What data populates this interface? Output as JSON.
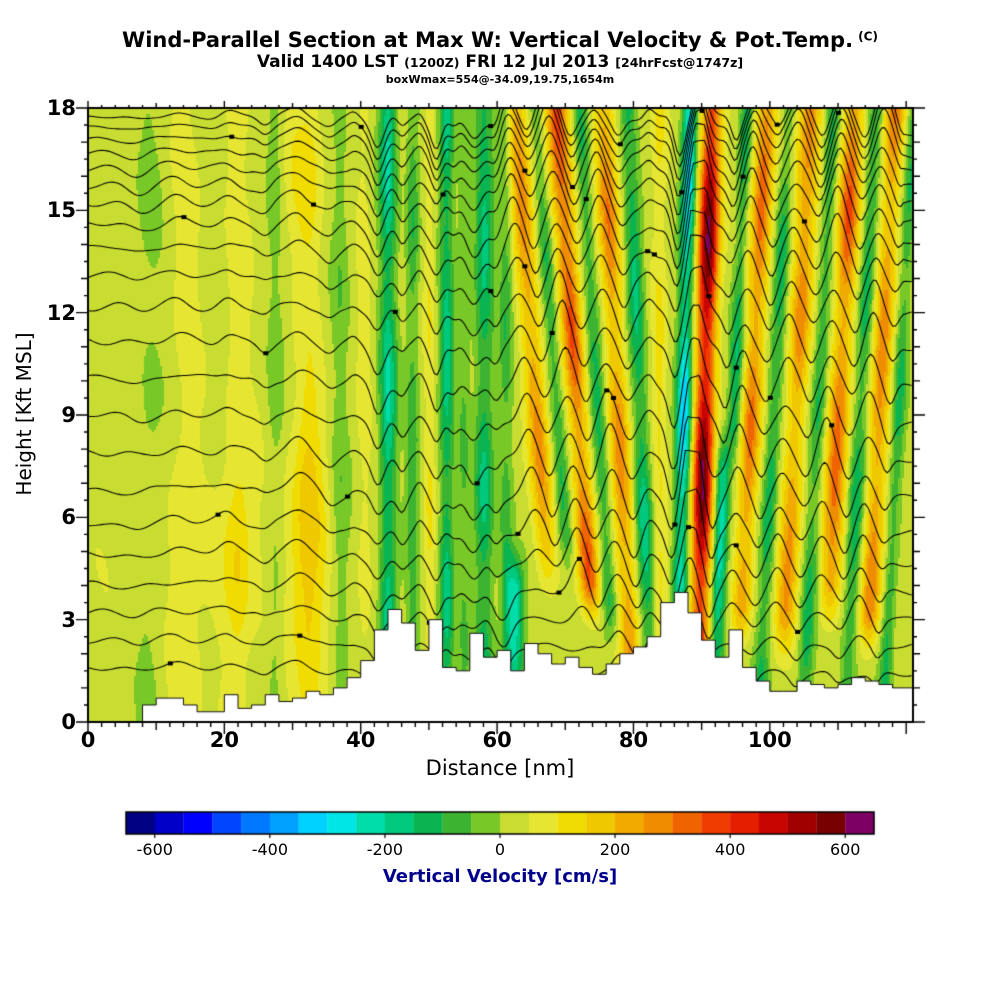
{
  "header": {
    "title": "Wind-Parallel Section at Max W: Vertical Velocity & Pot.Temp.",
    "title_suffix": "(C)",
    "subtitle_parts": [
      "Valid 1400 LST",
      "(1200Z)",
      "FRI 12 Jul 2013",
      "[24hrFcst@1747z]"
    ],
    "info_line": "boxWmax=554@-34.09,19.75,1654m"
  },
  "chart_data": {
    "type": "heatmap",
    "title": "Wind-Parallel Section at Max W: Vertical Velocity & Pot.Temp. (C)",
    "x_axis": {
      "label": "Distance [nm]",
      "range": [
        0,
        121
      ],
      "major_ticks": [
        0,
        20,
        40,
        60,
        80,
        100
      ],
      "minor_tick_step": 2
    },
    "y_axis": {
      "label": "Height [Kft MSL]",
      "range": [
        0,
        18
      ],
      "major_ticks": [
        0,
        3,
        6,
        9,
        12,
        15,
        18
      ],
      "minor_tick_step": 0.5
    },
    "colorbar": {
      "label": "Vertical Velocity [cm/s]",
      "label_color": "#00008b",
      "ticks": [
        -600,
        -400,
        -200,
        0,
        200,
        400,
        600
      ],
      "range": [
        -650,
        650
      ],
      "step": 50,
      "colors": [
        "#000082",
        "#0000c8",
        "#0000ff",
        "#0046ff",
        "#0078ff",
        "#00a0ff",
        "#00d2ff",
        "#00e6e6",
        "#00dcaa",
        "#00c87d",
        "#0ab450",
        "#3cb432",
        "#78c828",
        "#c8dc32",
        "#e6e632",
        "#f0dc00",
        "#f0c800",
        "#f0aa00",
        "#f08c00",
        "#f06400",
        "#f03c00",
        "#e61e00",
        "#c80500",
        "#a00000",
        "#780000",
        "#7d0064"
      ]
    },
    "field": {
      "base_value": 32,
      "noise_amp": 20,
      "bands": [
        [
          9,
          0,
          2.2,
          -45,
          0,
          18
        ],
        [
          14.5,
          0,
          2.0,
          45,
          0,
          18
        ],
        [
          22,
          0,
          1.6,
          55,
          0,
          18
        ],
        [
          27.5,
          0,
          1.3,
          -60,
          0,
          18
        ],
        [
          32.5,
          0,
          1.8,
          65,
          0,
          18
        ],
        [
          37,
          0,
          1.4,
          -75,
          0,
          18
        ],
        [
          40.5,
          0,
          1.0,
          40,
          0,
          18
        ],
        [
          44,
          0,
          1.3,
          -245,
          0,
          18
        ],
        [
          47.6,
          0,
          1.0,
          -135,
          0,
          18
        ],
        [
          50.1,
          0,
          0.8,
          70,
          0,
          18
        ],
        [
          52.6,
          0,
          1.1,
          -215,
          0,
          18
        ],
        [
          55.1,
          0,
          0.9,
          -85,
          0,
          18
        ],
        [
          58.1,
          0,
          1.5,
          -205,
          0,
          18
        ],
        [
          61.3,
          0,
          1.0,
          -120,
          0,
          18
        ],
        [
          62.6,
          0,
          1.3,
          -260,
          0,
          5.5
        ],
        [
          65.8,
          -0.35,
          1.5,
          235,
          3.5,
          18
        ],
        [
          68.8,
          -0.35,
          1.1,
          -150,
          4,
          18
        ],
        [
          71.8,
          -0.35,
          1.5,
          330,
          2.5,
          18
        ],
        [
          74.8,
          -0.3,
          1.2,
          -180,
          2,
          18
        ],
        [
          77.8,
          -0.25,
          1.5,
          265,
          0,
          18
        ],
        [
          81,
          -0.2,
          1.3,
          -215,
          0,
          18
        ],
        [
          83.8,
          0,
          1.1,
          90,
          0,
          18
        ],
        [
          87.4,
          0.1,
          1.15,
          -365,
          2.5,
          18
        ],
        [
          90.4,
          0.12,
          1.5,
          585,
          0.5,
          18
        ],
        [
          93.3,
          0.15,
          1.1,
          -285,
          0,
          9
        ],
        [
          94.8,
          0.2,
          1.0,
          -185,
          7,
          18
        ],
        [
          97.3,
          0.25,
          1.4,
          285,
          2,
          18
        ],
        [
          100.6,
          0.25,
          1.15,
          -175,
          0,
          18
        ],
        [
          103.8,
          0.25,
          1.5,
          245,
          1.5,
          18
        ],
        [
          107.1,
          0.25,
          1.15,
          -155,
          0,
          18
        ],
        [
          110.1,
          0.25,
          1.5,
          310,
          2.5,
          18
        ],
        [
          113.3,
          0.25,
          1.15,
          -175,
          0,
          18
        ],
        [
          116.1,
          0.25,
          1.4,
          265,
          1.5,
          18
        ],
        [
          118.9,
          0.25,
          1.0,
          -150,
          0,
          18
        ]
      ],
      "blobs": [
        [
          22,
          5,
          3,
          3,
          70
        ],
        [
          32,
          5,
          3,
          3.5,
          120
        ],
        [
          31,
          16,
          2.5,
          2,
          60
        ],
        [
          14,
          4,
          4,
          3,
          30
        ],
        [
          104,
          16,
          8,
          2.5,
          40
        ],
        [
          70,
          16,
          6,
          2.5,
          50
        ]
      ]
    },
    "isentropes": {
      "base_heights": [
        1.6,
        2.4,
        3.2,
        4.0,
        4.9,
        5.8,
        6.8,
        7.9,
        9.0,
        10.1,
        11.2,
        12.2,
        13.1,
        13.9,
        14.6,
        15.2,
        15.75,
        16.25,
        16.7,
        17.1,
        17.45,
        17.75
      ],
      "shift_nm": 1.5,
      "scale": 260,
      "max_disp_kft": 1.3
    },
    "terrain": {
      "bin_width_nm": 2,
      "heights_kft": [
        0,
        0,
        0,
        0,
        0.5,
        0.7,
        0.7,
        0.5,
        0.3,
        0.3,
        0.8,
        0.4,
        0.5,
        0.8,
        0.6,
        0.7,
        0.9,
        0.8,
        1.0,
        1.3,
        1.8,
        2.7,
        3.3,
        2.9,
        2.1,
        3.0,
        1.6,
        1.5,
        2.6,
        1.9,
        2.1,
        1.5,
        2.3,
        2.0,
        1.7,
        1.9,
        1.6,
        1.4,
        1.7,
        2.0,
        2.2,
        2.5,
        3.5,
        3.8,
        3.2,
        2.4,
        1.9,
        2.7,
        1.6,
        1.2,
        0.9,
        0.9,
        1.2,
        1.1,
        1.0,
        1.1,
        1.3,
        1.2,
        1.1,
        1.0,
        1.0
      ]
    },
    "colors": {
      "contour_lines": "#000000",
      "terrain_fill": "#ffffff",
      "frame": "#000000"
    }
  }
}
